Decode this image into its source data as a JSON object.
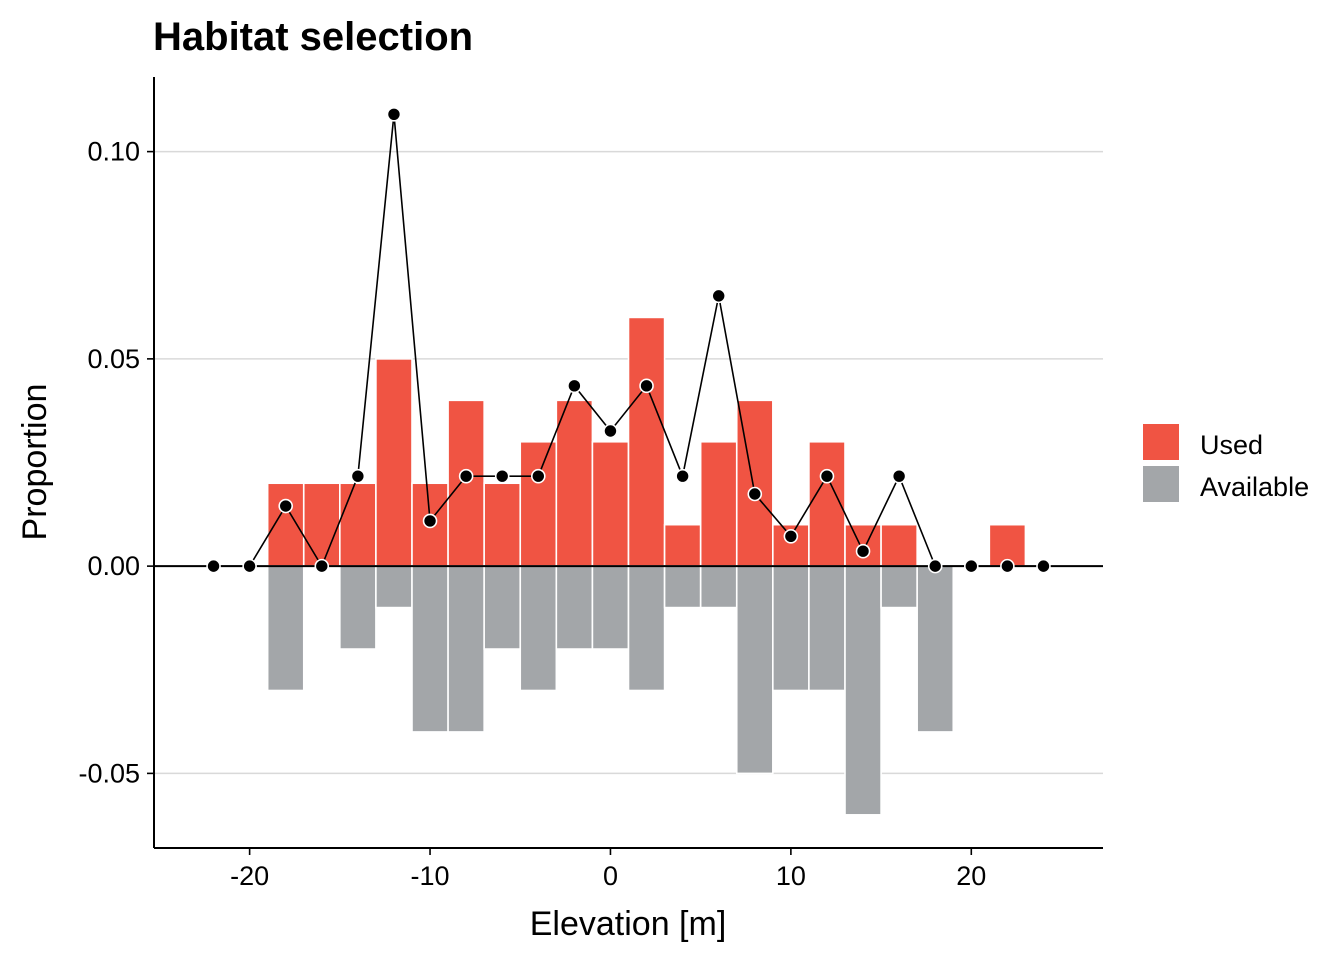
{
  "chart_data": {
    "type": "bar",
    "title": "Habitat selection",
    "xlabel": "Elevation [m]",
    "ylabel": "Proportion",
    "xlim": [
      -25.3,
      27.3
    ],
    "ylim": [
      -0.068,
      0.118
    ],
    "x_ticks": [
      -20,
      -10,
      0,
      10,
      20
    ],
    "x_tick_labels": [
      "-20",
      "-10",
      "0",
      "10",
      "20"
    ],
    "y_ticks": [
      -0.05,
      0.0,
      0.05,
      0.1
    ],
    "y_tick_labels": [
      "-0.05",
      "0.00",
      "0.05",
      "0.10"
    ],
    "grid": "horizontal major",
    "legend_position": "right",
    "bar_width": 2,
    "x": [
      -22,
      -20,
      -18,
      -16,
      -14,
      -12,
      -10,
      -8,
      -6,
      -4,
      -2,
      0,
      2,
      4,
      6,
      8,
      10,
      12,
      14,
      16,
      18,
      20,
      22,
      24
    ],
    "series": [
      {
        "name": "Used",
        "kind": "bar",
        "color": "#F05443",
        "values": [
          0,
          0,
          0.02,
          0.02,
          0.02,
          0.05,
          0.02,
          0.04,
          0.02,
          0.03,
          0.04,
          0.03,
          0.06,
          0.01,
          0.03,
          0.04,
          0.01,
          0.03,
          0.01,
          0.01,
          0,
          0,
          0.01,
          0
        ]
      },
      {
        "name": "Available",
        "kind": "bar",
        "color": "#A3A6A9",
        "values": [
          0,
          0,
          -0.03,
          0,
          -0.02,
          -0.01,
          -0.04,
          -0.04,
          -0.02,
          -0.03,
          -0.02,
          -0.02,
          -0.03,
          -0.01,
          -0.01,
          -0.05,
          -0.03,
          -0.03,
          -0.06,
          -0.01,
          -0.04,
          0,
          0,
          0
        ]
      },
      {
        "kind": "line",
        "color": "#000000",
        "values": [
          0,
          0,
          0.0145,
          0,
          0.0217,
          0.109,
          0.0109,
          0.0217,
          0.0217,
          0.0217,
          0.0435,
          0.0326,
          0.0435,
          0.0217,
          0.0652,
          0.0174,
          0.0072,
          0.0217,
          0.0036,
          0.0217,
          0,
          0,
          0,
          0
        ]
      }
    ]
  }
}
